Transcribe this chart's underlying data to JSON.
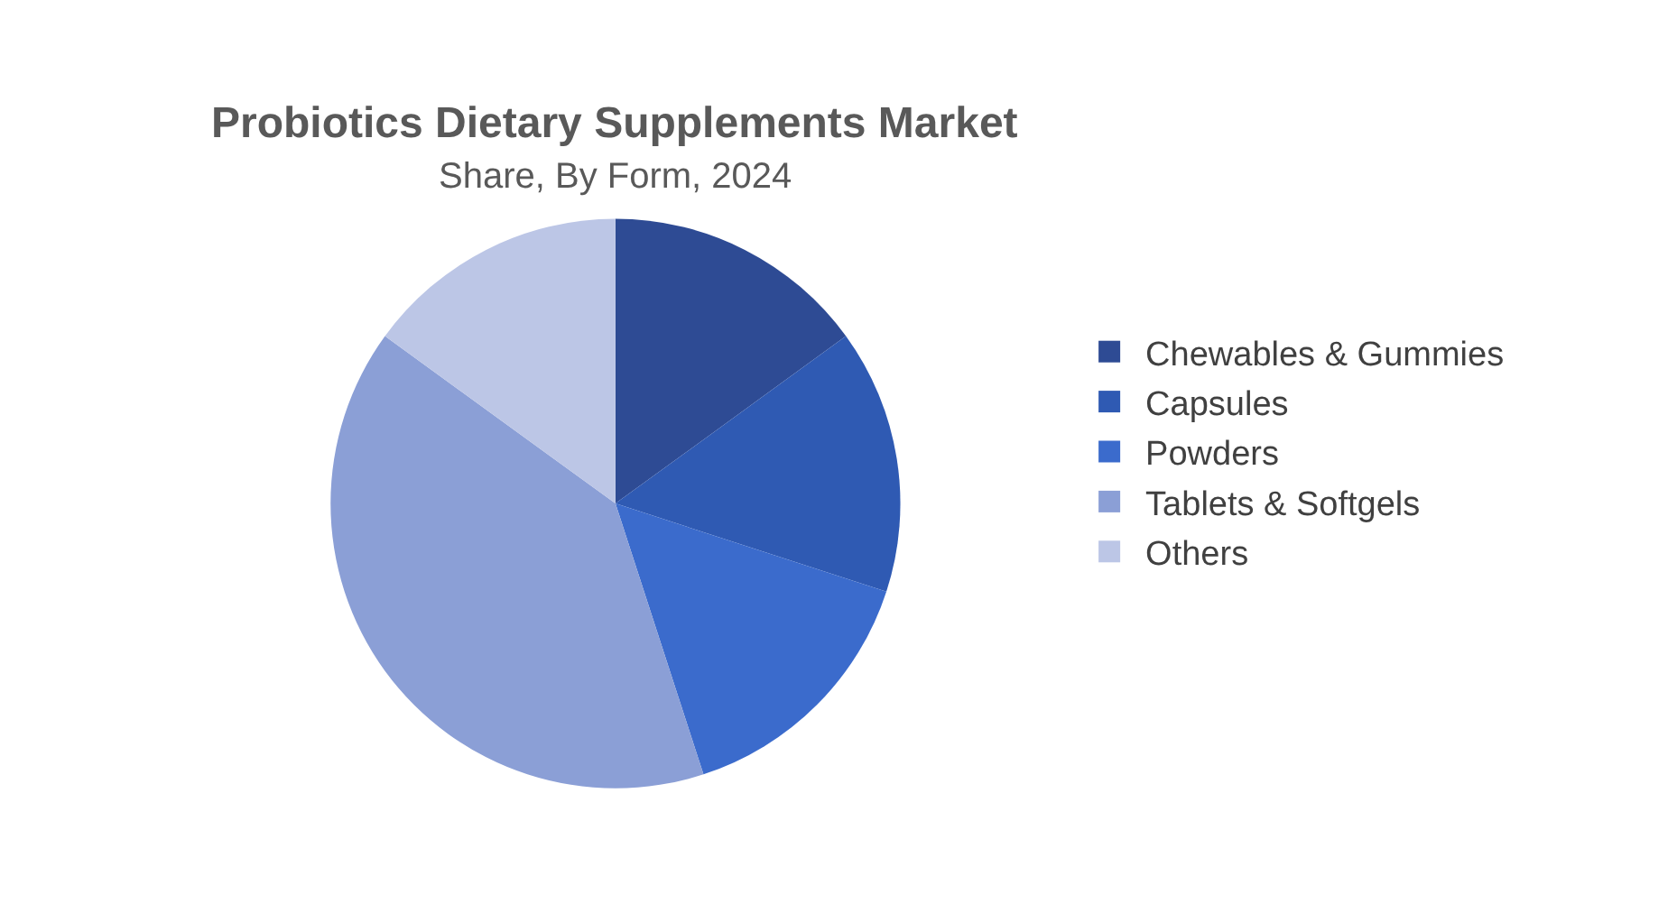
{
  "chart_data": {
    "type": "pie",
    "title": "Probiotics Dietary Supplements Market",
    "subtitle": "Share, By Form, 2024",
    "categories": [
      "Chewables & Gummies",
      "Capsules",
      "Powders",
      "Tablets & Softgels",
      "Others"
    ],
    "values": [
      15,
      15,
      15,
      40,
      15
    ],
    "colors": [
      "#2e4b94",
      "#2f5ab3",
      "#3b6bcc",
      "#8b9fd6",
      "#bcc6e6"
    ],
    "legend": "right"
  }
}
